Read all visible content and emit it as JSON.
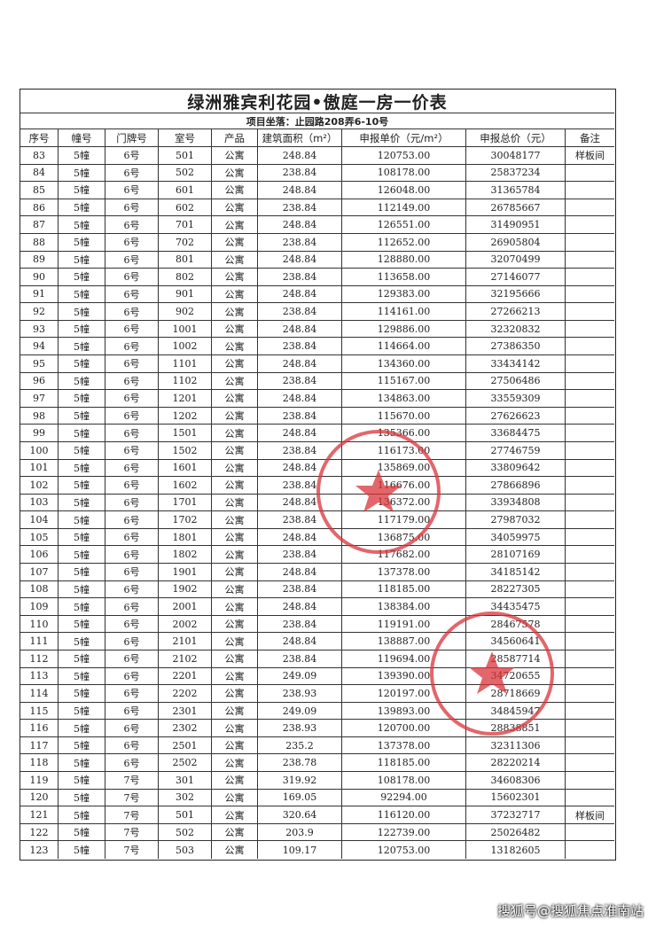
{
  "header": {
    "title": "绿洲雅宾利花园•傲庭一房一价表",
    "subtitle": "项目坐落：止园路208弄6-10号"
  },
  "table": {
    "columns": [
      "序号",
      "幢号",
      "门牌号",
      "室号",
      "产品",
      "建筑面积（m²）",
      "申报单价（元/m²）",
      "申报总价（元）",
      "备注"
    ],
    "rows": [
      [
        "83",
        "5幢",
        "6号",
        "501",
        "公寓",
        "248.84",
        "120753.00",
        "30048177",
        "样板间"
      ],
      [
        "84",
        "5幢",
        "6号",
        "502",
        "公寓",
        "238.84",
        "108178.00",
        "25837234"
      ],
      [
        "85",
        "5幢",
        "6号",
        "601",
        "公寓",
        "248.84",
        "126048.00",
        "31365784"
      ],
      [
        "86",
        "5幢",
        "6号",
        "602",
        "公寓",
        "238.84",
        "112149.00",
        "26785667"
      ],
      [
        "87",
        "5幢",
        "6号",
        "701",
        "公寓",
        "248.84",
        "126551.00",
        "31490951"
      ],
      [
        "88",
        "5幢",
        "6号",
        "702",
        "公寓",
        "238.84",
        "112652.00",
        "26905804"
      ],
      [
        "89",
        "5幢",
        "6号",
        "801",
        "公寓",
        "248.84",
        "128880.00",
        "32070499"
      ],
      [
        "90",
        "5幢",
        "6号",
        "802",
        "公寓",
        "238.84",
        "113658.00",
        "27146077"
      ],
      [
        "91",
        "5幢",
        "6号",
        "901",
        "公寓",
        "248.84",
        "129383.00",
        "32195666"
      ],
      [
        "92",
        "5幢",
        "6号",
        "902",
        "公寓",
        "238.84",
        "114161.00",
        "27266213"
      ],
      [
        "93",
        "5幢",
        "6号",
        "1001",
        "公寓",
        "248.84",
        "129886.00",
        "32320832"
      ],
      [
        "94",
        "5幢",
        "6号",
        "1002",
        "公寓",
        "238.84",
        "114664.00",
        "27386350"
      ],
      [
        "95",
        "5幢",
        "6号",
        "1101",
        "公寓",
        "248.84",
        "134360.00",
        "33434142"
      ],
      [
        "96",
        "5幢",
        "6号",
        "1102",
        "公寓",
        "238.84",
        "115167.00",
        "27506486"
      ],
      [
        "97",
        "5幢",
        "6号",
        "1201",
        "公寓",
        "248.84",
        "134863.00",
        "33559309"
      ],
      [
        "98",
        "5幢",
        "6号",
        "1202",
        "公寓",
        "238.84",
        "115670.00",
        "27626623"
      ],
      [
        "99",
        "5幢",
        "6号",
        "1501",
        "公寓",
        "248.84",
        "135366.00",
        "33684475"
      ],
      [
        "100",
        "5幢",
        "6号",
        "1502",
        "公寓",
        "238.84",
        "116173.00",
        "27746759"
      ],
      [
        "101",
        "5幢",
        "6号",
        "1601",
        "公寓",
        "248.84",
        "135869.00",
        "33809642"
      ],
      [
        "102",
        "5幢",
        "6号",
        "1602",
        "公寓",
        "238.84",
        "116676.00",
        "27866896"
      ],
      [
        "103",
        "5幢",
        "6号",
        "1701",
        "公寓",
        "248.84",
        "136372.00",
        "33934808"
      ],
      [
        "104",
        "5幢",
        "6号",
        "1702",
        "公寓",
        "238.84",
        "117179.00",
        "27987032"
      ],
      [
        "105",
        "5幢",
        "6号",
        "1801",
        "公寓",
        "248.84",
        "136875.00",
        "34059975"
      ],
      [
        "106",
        "5幢",
        "6号",
        "1802",
        "公寓",
        "238.84",
        "117682.00",
        "28107169"
      ],
      [
        "107",
        "5幢",
        "6号",
        "1901",
        "公寓",
        "248.84",
        "137378.00",
        "34185142"
      ],
      [
        "108",
        "5幢",
        "6号",
        "1902",
        "公寓",
        "238.84",
        "118185.00",
        "28227305"
      ],
      [
        "109",
        "5幢",
        "6号",
        "2001",
        "公寓",
        "248.84",
        "138384.00",
        "34435475"
      ],
      [
        "110",
        "5幢",
        "6号",
        "2002",
        "公寓",
        "238.84",
        "119191.00",
        "28467578"
      ],
      [
        "111",
        "5幢",
        "6号",
        "2101",
        "公寓",
        "248.84",
        "138887.00",
        "34560641"
      ],
      [
        "112",
        "5幢",
        "6号",
        "2102",
        "公寓",
        "238.84",
        "119694.00",
        "28587714"
      ],
      [
        "113",
        "5幢",
        "6号",
        "2201",
        "公寓",
        "249.09",
        "139390.00",
        "34720655"
      ],
      [
        "114",
        "5幢",
        "6号",
        "2202",
        "公寓",
        "238.93",
        "120197.00",
        "28718669"
      ],
      [
        "115",
        "5幢",
        "6号",
        "2301",
        "公寓",
        "249.09",
        "139893.00",
        "34845947"
      ],
      [
        "116",
        "5幢",
        "6号",
        "2302",
        "公寓",
        "238.93",
        "120700.00",
        "28838851"
      ],
      [
        "117",
        "5幢",
        "6号",
        "2501",
        "公寓",
        "235.2",
        "137378.00",
        "32311306"
      ],
      [
        "118",
        "5幢",
        "6号",
        "2502",
        "公寓",
        "238.78",
        "118185.00",
        "28220214"
      ],
      [
        "119",
        "5幢",
        "7号",
        "301",
        "公寓",
        "319.92",
        "108178.00",
        "34608306"
      ],
      [
        "120",
        "5幢",
        "7号",
        "302",
        "公寓",
        "169.05",
        "92294.00",
        "15602301"
      ],
      [
        "121",
        "5幢",
        "7号",
        "501",
        "公寓",
        "320.64",
        "116120.00",
        "37232717",
        "样板间"
      ],
      [
        "122",
        "5幢",
        "7号",
        "502",
        "公寓",
        "203.9",
        "122739.00",
        "25026482"
      ],
      [
        "123",
        "5幢",
        "7号",
        "503",
        "公寓",
        "109.17",
        "120753.00",
        "13182605"
      ]
    ]
  },
  "footer": "搜狐号@搜狐焦点淮南站"
}
